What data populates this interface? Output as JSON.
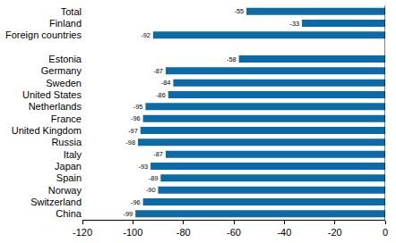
{
  "chart_data": {
    "type": "bar",
    "orientation": "horizontal",
    "categories": [
      "Total",
      "Finland",
      "Foreign countries",
      null,
      "Estonia",
      "Germany",
      "Sweden",
      "United States",
      "Netherlands",
      "France",
      "United Kingdom",
      "Russia",
      "Italy",
      "Japan",
      "Spain",
      "Norway",
      "Switzerland",
      "China"
    ],
    "values": [
      -55,
      -33,
      -92,
      null,
      -58,
      -87,
      -84,
      -86,
      -95,
      -96,
      -97,
      -98,
      -87,
      -93,
      -89,
      -90,
      -96,
      -99
    ],
    "color": "#0c6aa6",
    "xlim": [
      -120,
      0
    ],
    "xticks": [
      -120,
      -100,
      -80,
      -60,
      -40,
      -20,
      0
    ],
    "grid": false,
    "data_labels": true
  }
}
